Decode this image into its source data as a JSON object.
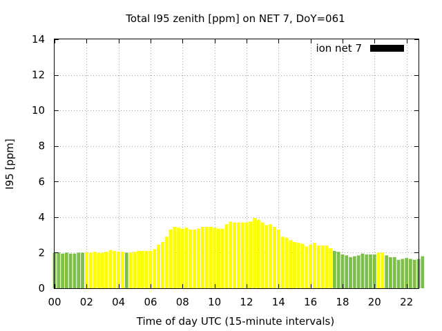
{
  "chart_data": {
    "type": "bar",
    "title": "Total I95 zenith [ppm] on NET 7, DoY=061",
    "xlabel": "Time of day UTC (15-minute intervals)",
    "ylabel": "I95 [ppm]",
    "xlim": [
      0,
      22.75
    ],
    "ylim": [
      0,
      14
    ],
    "x_ticks": [
      "00",
      "02",
      "04",
      "06",
      "08",
      "10",
      "12",
      "14",
      "16",
      "18",
      "20",
      "22"
    ],
    "y_ticks": [
      "0",
      "2",
      "4",
      "6",
      "8",
      "10",
      "12",
      "14"
    ],
    "grid": true,
    "legend": {
      "position": "top-right",
      "entries": [
        {
          "label": "ion net 7",
          "color": "#000000"
        }
      ]
    },
    "colors": {
      "green": "#7cbf4a",
      "yellow": "#ffff00"
    },
    "bar_interval_hours": 0.25,
    "series": [
      {
        "values": [
          2.0,
          2.0,
          1.95,
          2.0,
          1.95,
          1.95,
          2.0,
          2.0,
          2.0,
          2.0,
          2.05,
          2.0,
          2.0,
          2.05,
          2.15,
          2.1,
          2.05,
          2.05,
          2.0,
          2.0,
          2.05,
          2.1,
          2.1,
          2.1,
          2.1,
          2.2,
          2.45,
          2.6,
          2.9,
          3.3,
          3.45,
          3.4,
          3.35,
          3.4,
          3.3,
          3.3,
          3.35,
          3.45,
          3.45,
          3.45,
          3.4,
          3.35,
          3.35,
          3.6,
          3.75,
          3.7,
          3.7,
          3.7,
          3.7,
          3.75,
          3.95,
          3.85,
          3.7,
          3.55,
          3.6,
          3.45,
          3.3,
          2.9,
          2.85,
          2.7,
          2.6,
          2.55,
          2.5,
          2.35,
          2.45,
          2.55,
          2.4,
          2.4,
          2.4,
          2.25,
          2.1,
          2.05,
          1.9,
          1.85,
          1.75,
          1.8,
          1.85,
          1.95,
          1.9,
          1.9,
          1.9,
          2.0,
          2.0,
          1.85,
          1.75,
          1.75,
          1.6,
          1.65,
          1.7,
          1.65,
          1.6,
          1.65,
          1.8
        ],
        "colors": [
          "green",
          "green",
          "green",
          "green",
          "green",
          "green",
          "green",
          "green",
          "yellow",
          "yellow",
          "yellow",
          "yellow",
          "yellow",
          "yellow",
          "yellow",
          "yellow",
          "yellow",
          "yellow",
          "green",
          "yellow",
          "yellow",
          "yellow",
          "yellow",
          "yellow",
          "yellow",
          "yellow",
          "yellow",
          "yellow",
          "yellow",
          "yellow",
          "yellow",
          "yellow",
          "yellow",
          "yellow",
          "yellow",
          "yellow",
          "yellow",
          "yellow",
          "yellow",
          "yellow",
          "yellow",
          "yellow",
          "yellow",
          "yellow",
          "yellow",
          "yellow",
          "yellow",
          "yellow",
          "yellow",
          "yellow",
          "yellow",
          "yellow",
          "yellow",
          "yellow",
          "yellow",
          "yellow",
          "yellow",
          "yellow",
          "yellow",
          "yellow",
          "yellow",
          "yellow",
          "yellow",
          "yellow",
          "yellow",
          "yellow",
          "yellow",
          "yellow",
          "yellow",
          "yellow",
          "green",
          "green",
          "green",
          "green",
          "green",
          "green",
          "green",
          "green",
          "green",
          "green",
          "green",
          "yellow",
          "yellow",
          "green",
          "green",
          "green",
          "green",
          "green",
          "green",
          "green",
          "green",
          "green",
          "green"
        ]
      }
    ]
  }
}
